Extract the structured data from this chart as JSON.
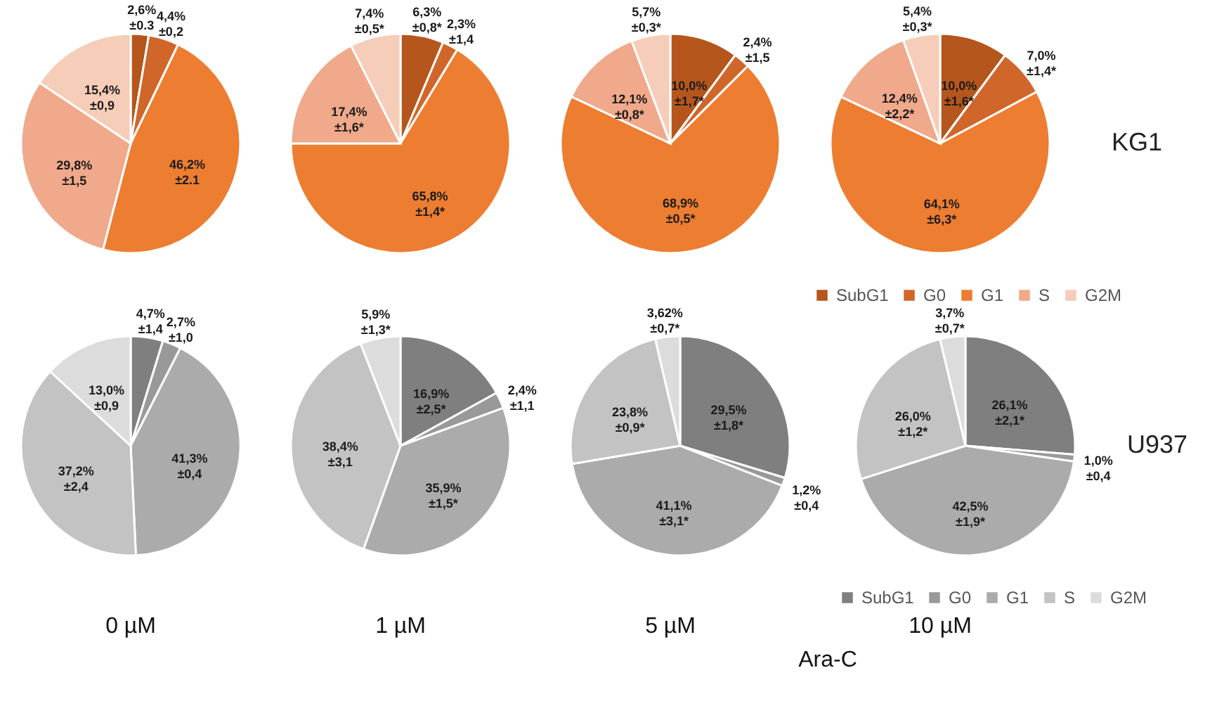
{
  "chart_data": [
    {
      "type": "pie",
      "categories": [
        null,
        null,
        null,
        null,
        null
      ],
      "colors": [
        "#b5561c",
        "#d0662a",
        "#ed7d31",
        "#f0a98a",
        "#f6cdb9"
      ],
      "values": [
        2.6,
        4.4,
        46.2,
        29.8,
        15.4
      ],
      "value_labels": [
        "2,6%\n±0.3",
        "4,4%\n±0,2",
        "46,2%\n±2.1",
        "29,8%\n±1,5",
        "15,4%\n±0,9"
      ]
    },
    {
      "type": "pie",
      "categories": [
        null,
        null,
        null,
        null,
        null
      ],
      "colors": [
        "#b5561c",
        "#d0662a",
        "#ed7d31",
        "#f0a98a",
        "#f6cdb9"
      ],
      "values": [
        6.3,
        2.3,
        65.8,
        17.4,
        7.4
      ],
      "value_labels": [
        "6,3%\n±0,8*",
        "2,3%\n±1,4",
        "65,8%\n±1,4*",
        "17,4%\n±1,6*",
        "7,4%\n±0,5*"
      ]
    },
    {
      "type": "pie",
      "categories": [
        null,
        null,
        null,
        null,
        null
      ],
      "colors": [
        "#b5561c",
        "#d0662a",
        "#ed7d31",
        "#f0a98a",
        "#f6cdb9"
      ],
      "values": [
        10.0,
        2.4,
        68.9,
        12.1,
        5.7
      ],
      "value_labels": [
        "10,0%\n±1,7*",
        "2,4%\n±1,5",
        "68,9%\n±0,5*",
        "12,1%\n±0,8*",
        "5,7%\n±0,3*"
      ]
    },
    {
      "type": "pie",
      "categories": [
        "SubG1",
        "G0",
        "G1",
        "S",
        "G2M"
      ],
      "colors": [
        "#b5561c",
        "#d0662a",
        "#ed7d31",
        "#f0a98a",
        "#f6cdb9"
      ],
      "values": [
        10.0,
        7.0,
        64.1,
        12.4,
        5.4
      ],
      "value_labels": [
        "10,0%\n±1,6*",
        "7,0%\n±1,4*",
        "64,1%\n±6,3*",
        "12,4%\n±2,2*",
        "5,4%\n±0,3*"
      ],
      "legend": "bottom",
      "annotations": [
        "KG1"
      ]
    },
    {
      "type": "pie",
      "categories": [
        null,
        null,
        null,
        null,
        null
      ],
      "colors": [
        "#7f7f7f",
        "#999999",
        "#ababab",
        "#c3c3c3",
        "#dcdcdc"
      ],
      "values": [
        4.7,
        2.7,
        41.3,
        37.2,
        13.0
      ],
      "value_labels": [
        "4,7%\n±1,4",
        "2,7%\n±1,0",
        "41,3%\n±0,4",
        "37,2%\n±2,4",
        "13,0%\n±0,9"
      ]
    },
    {
      "type": "pie",
      "categories": [
        null,
        null,
        null,
        null,
        null
      ],
      "colors": [
        "#7f7f7f",
        "#999999",
        "#ababab",
        "#c3c3c3",
        "#dcdcdc"
      ],
      "values": [
        16.9,
        2.4,
        35.9,
        38.4,
        5.9
      ],
      "value_labels": [
        "16,9%\n±2,5*",
        "2,4%\n±1,1",
        "35,9%\n±1,5*",
        "38,4%\n±3,1",
        "5,9%\n±1,3*"
      ]
    },
    {
      "type": "pie",
      "categories": [
        null,
        null,
        null,
        null,
        null
      ],
      "colors": [
        "#7f7f7f",
        "#999999",
        "#ababab",
        "#c3c3c3",
        "#dcdcdc"
      ],
      "values": [
        29.5,
        1.2,
        41.1,
        23.8,
        3.62
      ],
      "value_labels": [
        "29,5%\n±1,8*",
        "1,2%\n±0,4",
        "41,1%\n±3,1*",
        "23,8%\n±0,9*",
        "3,62%\n±0,7*"
      ]
    },
    {
      "type": "pie",
      "categories": [
        "SubG1",
        "G0",
        "G1",
        "S",
        "G2M"
      ],
      "colors": [
        "#7f7f7f",
        "#999999",
        "#ababab",
        "#c3c3c3",
        "#dcdcdc"
      ],
      "values": [
        26.1,
        1.0,
        42.5,
        26.0,
        3.7
      ],
      "value_labels": [
        "26,1%\n±2,1*",
        "1,0%\n±0,4",
        "42,5%\n±1,9*",
        "26,0%\n±1,2*",
        "3,7%\n±0,7*"
      ],
      "legend": "bottom",
      "annotations": [
        "U937"
      ]
    },
    {
      "type": "other",
      "annotations": [
        "0 µM",
        "1 µM",
        "5 µM",
        "10 µM",
        "Ara-C"
      ]
    }
  ]
}
